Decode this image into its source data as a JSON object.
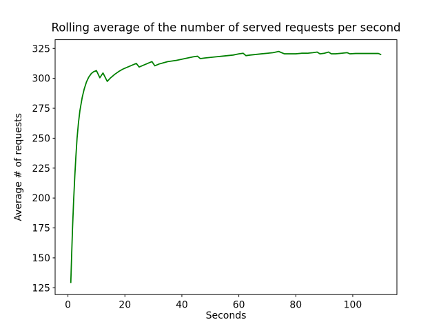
{
  "chart_data": {
    "type": "line",
    "title": "Rolling average of the number of served requests per second",
    "xlabel": "Seconds",
    "ylabel": "Average # of requests",
    "xlim": [
      -4.5,
      115.5
    ],
    "ylim": [
      119.3,
      332.3
    ],
    "x_ticks": [
      0,
      20,
      40,
      60,
      80,
      100
    ],
    "y_ticks": [
      125,
      150,
      175,
      200,
      225,
      250,
      275,
      300,
      325
    ],
    "grid": false,
    "legend": "none",
    "background_color": "#ffffff",
    "axes_edge_color": "#000000",
    "series": [
      {
        "name": "rolling-average-of-served-requests",
        "color": "#008000",
        "line_width": 1.8,
        "points": [
          [
            1,
            129
          ],
          [
            1.3,
            152
          ],
          [
            1.6,
            174
          ],
          [
            2,
            198
          ],
          [
            2.4,
            218
          ],
          [
            2.8,
            235
          ],
          [
            3.2,
            250
          ],
          [
            3.7,
            263
          ],
          [
            4.2,
            273
          ],
          [
            5,
            284
          ],
          [
            5.7,
            291
          ],
          [
            6.5,
            297
          ],
          [
            7.3,
            301
          ],
          [
            8.2,
            304
          ],
          [
            9,
            305.5
          ],
          [
            10,
            306.5
          ],
          [
            11.2,
            300.5
          ],
          [
            12.3,
            304.5
          ],
          [
            13.8,
            297.5
          ],
          [
            15,
            300.5
          ],
          [
            16.5,
            303.5
          ],
          [
            18,
            306
          ],
          [
            19.5,
            308
          ],
          [
            21,
            309.5
          ],
          [
            22.5,
            311
          ],
          [
            24,
            312.5
          ],
          [
            25,
            309.5
          ],
          [
            26.5,
            311
          ],
          [
            28,
            312.5
          ],
          [
            29.5,
            314
          ],
          [
            30.5,
            310.5
          ],
          [
            32,
            312
          ],
          [
            33.5,
            313
          ],
          [
            35,
            314
          ],
          [
            36.5,
            314.5
          ],
          [
            38,
            315
          ],
          [
            40,
            316
          ],
          [
            42,
            317
          ],
          [
            44,
            318
          ],
          [
            45.5,
            318.5
          ],
          [
            46.5,
            316.5
          ],
          [
            48,
            317
          ],
          [
            50,
            317.5
          ],
          [
            52,
            318
          ],
          [
            54,
            318.5
          ],
          [
            56,
            319
          ],
          [
            58,
            319.5
          ],
          [
            60,
            320.5
          ],
          [
            61.5,
            321
          ],
          [
            62.5,
            319
          ],
          [
            64,
            319.5
          ],
          [
            66,
            320
          ],
          [
            68,
            320.5
          ],
          [
            70,
            321
          ],
          [
            72,
            321.5
          ],
          [
            74,
            322.5
          ],
          [
            76,
            320.5
          ],
          [
            78,
            320.5
          ],
          [
            80,
            320.5
          ],
          [
            82,
            321
          ],
          [
            84,
            321
          ],
          [
            86,
            321.5
          ],
          [
            87.5,
            322
          ],
          [
            88.5,
            320.5
          ],
          [
            90,
            321
          ],
          [
            91.5,
            322
          ],
          [
            92.5,
            320.5
          ],
          [
            94,
            320.5
          ],
          [
            96,
            321
          ],
          [
            98,
            321.5
          ],
          [
            99,
            320.5
          ],
          [
            101,
            320.8
          ],
          [
            103,
            320.8
          ],
          [
            105,
            320.8
          ],
          [
            107,
            320.8
          ],
          [
            109,
            320.8
          ],
          [
            110,
            319.8
          ]
        ]
      }
    ]
  }
}
